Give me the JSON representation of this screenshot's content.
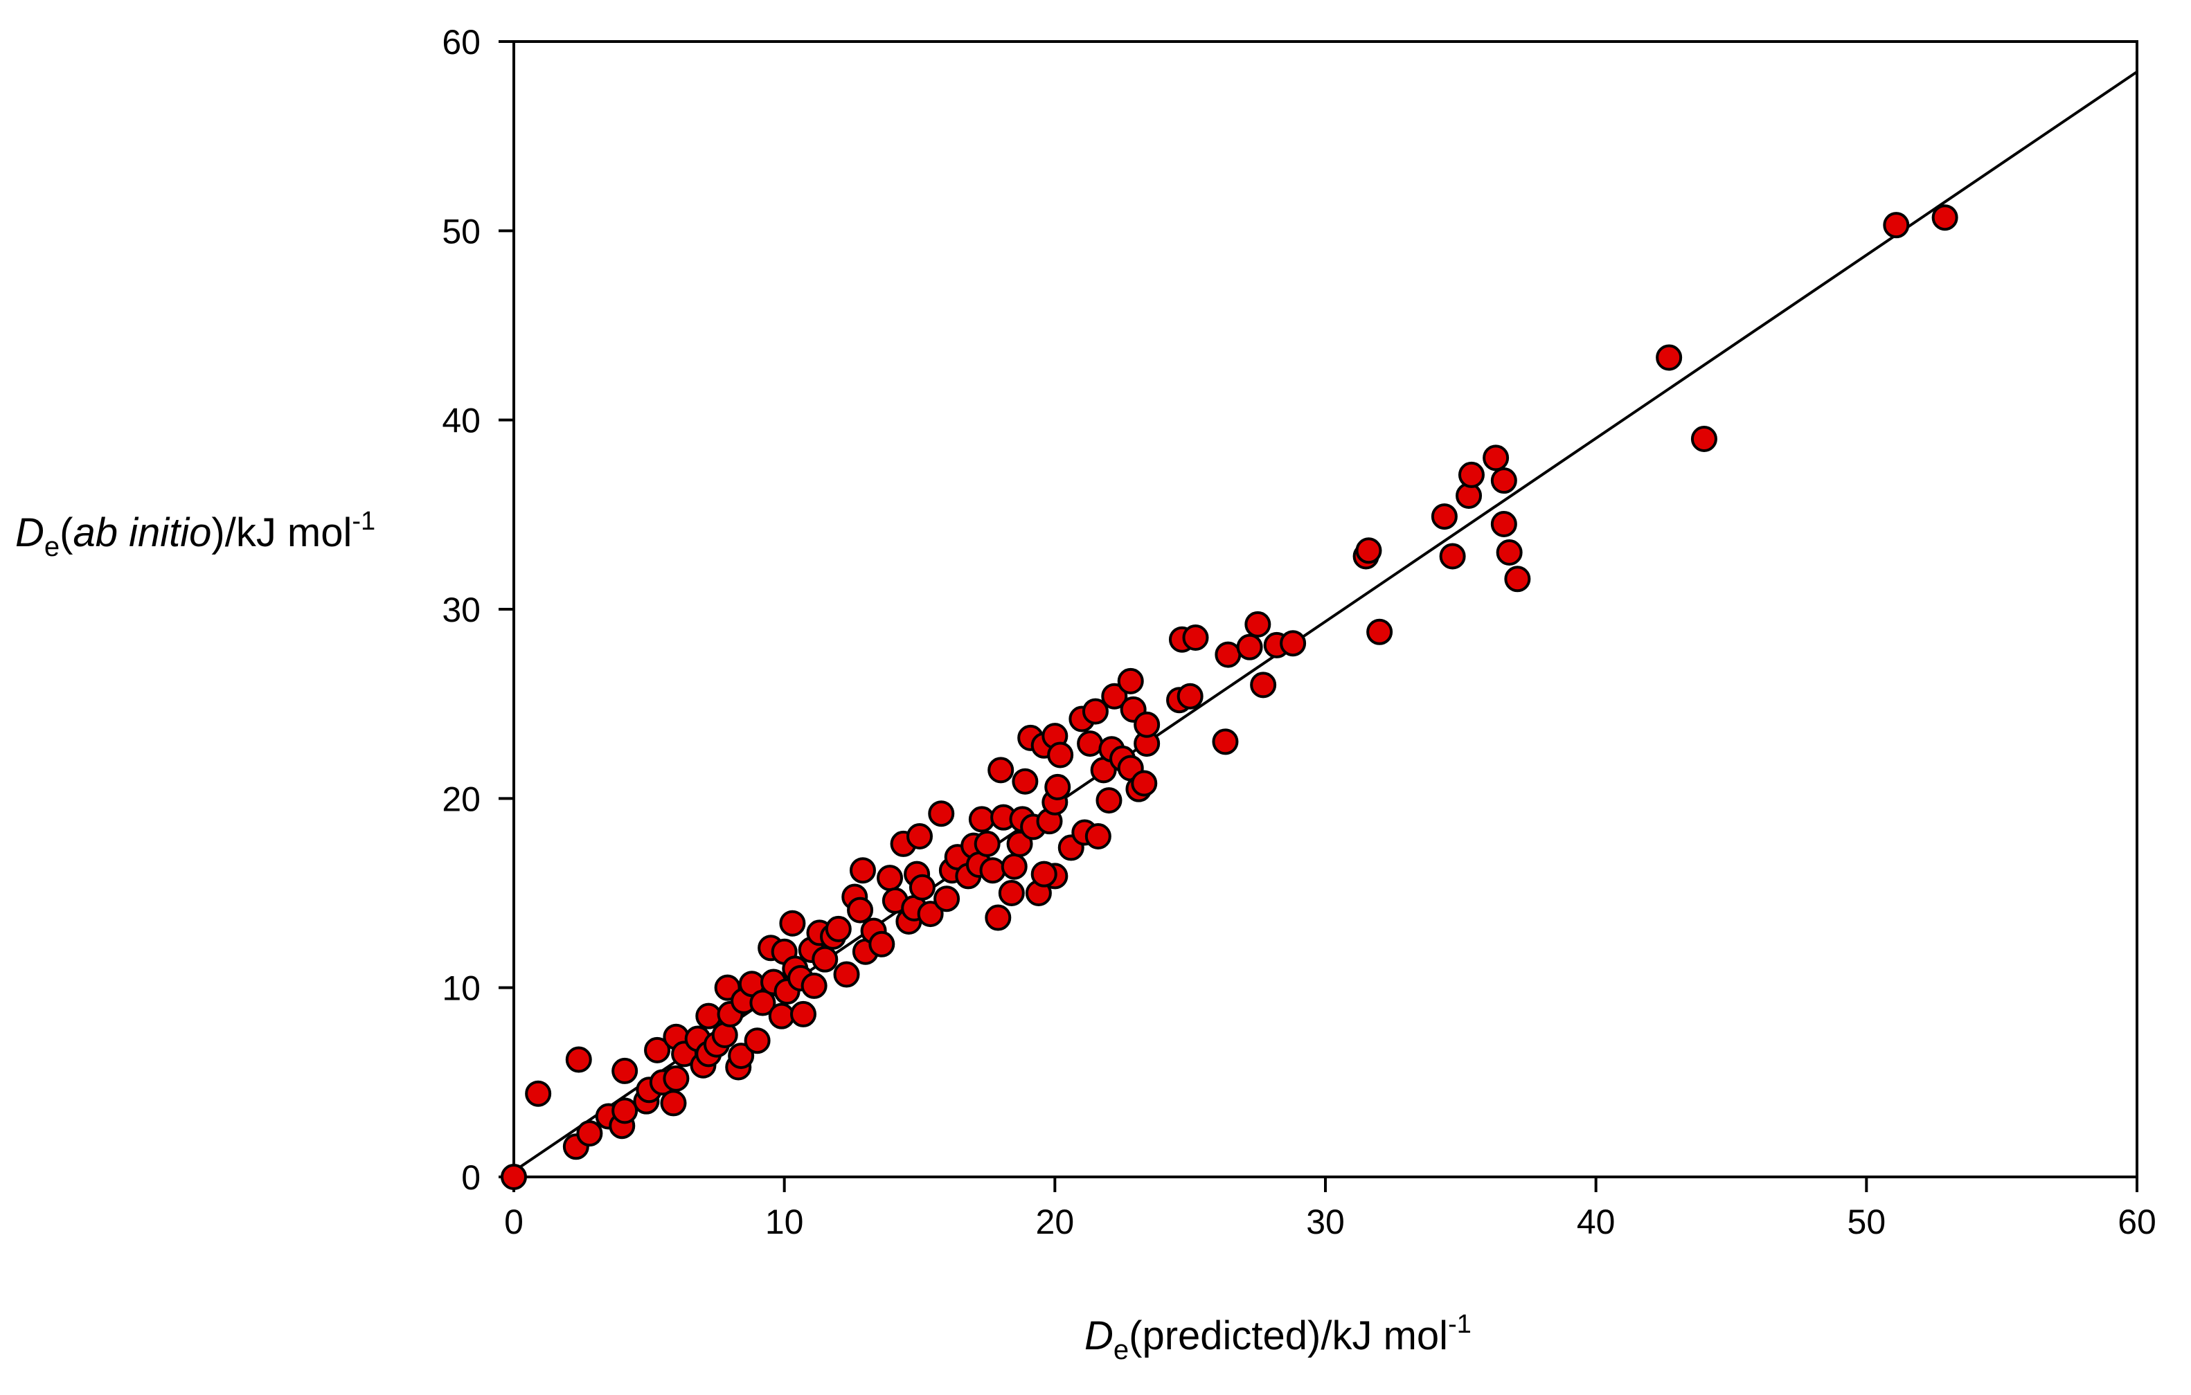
{
  "chart_data": {
    "type": "scatter",
    "xlabel": {
      "symbol": "D",
      "sub": "e",
      "text": "(predicted)/kJ mol",
      "sup": "-1"
    },
    "ylabel": {
      "symbol": "D",
      "sub": "e",
      "text_pre": "(",
      "italic": "ab initio",
      "text_post": ")/kJ mol",
      "sup": "-1"
    },
    "xlim": [
      0,
      60
    ],
    "ylim": [
      0,
      60
    ],
    "xticks": [
      "0",
      "10",
      "20",
      "30",
      "40",
      "50",
      "60"
    ],
    "yticks": [
      "0",
      "10",
      "20",
      "30",
      "40",
      "50",
      "60"
    ],
    "grid": false,
    "marker_color": "#e00000",
    "marker_edge": "#000000",
    "fit_line": {
      "x": [
        0,
        60
      ],
      "y": [
        0.3,
        58.4
      ]
    },
    "points": [
      [
        0,
        0
      ],
      [
        0.9,
        4.4
      ],
      [
        2.3,
        1.6
      ],
      [
        2.4,
        6.2
      ],
      [
        2.8,
        2.3
      ],
      [
        3.5,
        3.2
      ],
      [
        4.0,
        2.7
      ],
      [
        4.1,
        3.5
      ],
      [
        4.1,
        5.6
      ],
      [
        4.9,
        4.0
      ],
      [
        5.0,
        4.6
      ],
      [
        5.3,
        6.7
      ],
      [
        5.5,
        5.0
      ],
      [
        5.9,
        3.9
      ],
      [
        6.0,
        5.2
      ],
      [
        6.0,
        7.4
      ],
      [
        6.3,
        6.5
      ],
      [
        6.8,
        7.3
      ],
      [
        7.0,
        5.9
      ],
      [
        7.2,
        6.5
      ],
      [
        7.2,
        8.5
      ],
      [
        7.5,
        7.0
      ],
      [
        7.8,
        7.5
      ],
      [
        7.9,
        10.0
      ],
      [
        8.0,
        8.6
      ],
      [
        8.3,
        5.8
      ],
      [
        8.4,
        6.4
      ],
      [
        8.5,
        9.3
      ],
      [
        8.8,
        10.2
      ],
      [
        9.0,
        7.2
      ],
      [
        9.2,
        9.2
      ],
      [
        9.5,
        12.1
      ],
      [
        9.6,
        10.3
      ],
      [
        9.9,
        8.5
      ],
      [
        10.0,
        11.9
      ],
      [
        10.1,
        9.8
      ],
      [
        10.3,
        13.4
      ],
      [
        10.4,
        11.0
      ],
      [
        10.6,
        10.5
      ],
      [
        10.7,
        8.6
      ],
      [
        11.0,
        12.0
      ],
      [
        11.1,
        10.1
      ],
      [
        11.3,
        12.9
      ],
      [
        11.5,
        11.5
      ],
      [
        11.8,
        12.7
      ],
      [
        12.0,
        13.1
      ],
      [
        12.3,
        10.7
      ],
      [
        12.6,
        14.8
      ],
      [
        12.8,
        14.1
      ],
      [
        12.9,
        16.2
      ],
      [
        13.0,
        11.9
      ],
      [
        13.3,
        13.0
      ],
      [
        13.6,
        12.3
      ],
      [
        13.9,
        15.8
      ],
      [
        14.1,
        14.6
      ],
      [
        14.4,
        17.6
      ],
      [
        14.6,
        13.5
      ],
      [
        14.8,
        14.2
      ],
      [
        14.9,
        16.0
      ],
      [
        15.0,
        18.0
      ],
      [
        15.1,
        15.3
      ],
      [
        15.4,
        13.9
      ],
      [
        15.8,
        19.2
      ],
      [
        16.0,
        14.7
      ],
      [
        16.2,
        16.2
      ],
      [
        16.4,
        16.9
      ],
      [
        16.8,
        15.9
      ],
      [
        17.0,
        17.5
      ],
      [
        17.2,
        16.5
      ],
      [
        17.3,
        18.9
      ],
      [
        17.5,
        17.6
      ],
      [
        17.7,
        16.2
      ],
      [
        17.9,
        13.7
      ],
      [
        18.0,
        21.5
      ],
      [
        18.1,
        19.0
      ],
      [
        18.4,
        15.0
      ],
      [
        18.5,
        16.4
      ],
      [
        18.7,
        17.6
      ],
      [
        18.8,
        18.9
      ],
      [
        18.9,
        20.9
      ],
      [
        19.1,
        23.2
      ],
      [
        19.2,
        18.5
      ],
      [
        19.4,
        15.0
      ],
      [
        19.6,
        22.8
      ],
      [
        19.8,
        18.8
      ],
      [
        20.0,
        23.3
      ],
      [
        20.0,
        19.8
      ],
      [
        20.1,
        20.6
      ],
      [
        20.2,
        22.3
      ],
      [
        20.0,
        15.9
      ],
      [
        19.6,
        16.0
      ],
      [
        20.6,
        17.4
      ],
      [
        21.0,
        24.2
      ],
      [
        21.1,
        18.2
      ],
      [
        21.3,
        22.9
      ],
      [
        21.5,
        24.6
      ],
      [
        21.6,
        18.0
      ],
      [
        21.8,
        21.5
      ],
      [
        22.0,
        19.9
      ],
      [
        22.1,
        22.6
      ],
      [
        22.2,
        25.4
      ],
      [
        22.5,
        22.1
      ],
      [
        22.8,
        26.2
      ],
      [
        22.9,
        24.7
      ],
      [
        22.8,
        21.6
      ],
      [
        23.1,
        20.5
      ],
      [
        23.3,
        20.8
      ],
      [
        23.4,
        22.9
      ],
      [
        23.4,
        23.9
      ],
      [
        24.6,
        25.2
      ],
      [
        24.7,
        28.4
      ],
      [
        25.0,
        25.4
      ],
      [
        25.2,
        28.5
      ],
      [
        26.3,
        23.0
      ],
      [
        26.4,
        27.6
      ],
      [
        27.2,
        28.0
      ],
      [
        27.5,
        29.2
      ],
      [
        27.7,
        26.0
      ],
      [
        28.2,
        28.1
      ],
      [
        28.8,
        28.2
      ],
      [
        31.5,
        32.8
      ],
      [
        31.6,
        33.1
      ],
      [
        32.0,
        28.8
      ],
      [
        34.4,
        34.9
      ],
      [
        34.7,
        32.8
      ],
      [
        35.3,
        36.0
      ],
      [
        35.4,
        37.1
      ],
      [
        36.3,
        38.0
      ],
      [
        36.6,
        36.8
      ],
      [
        36.6,
        34.5
      ],
      [
        36.8,
        33.0
      ],
      [
        37.1,
        31.6
      ],
      [
        42.7,
        43.3
      ],
      [
        44.0,
        39.0
      ],
      [
        51.1,
        50.3
      ],
      [
        52.9,
        50.7
      ]
    ]
  }
}
